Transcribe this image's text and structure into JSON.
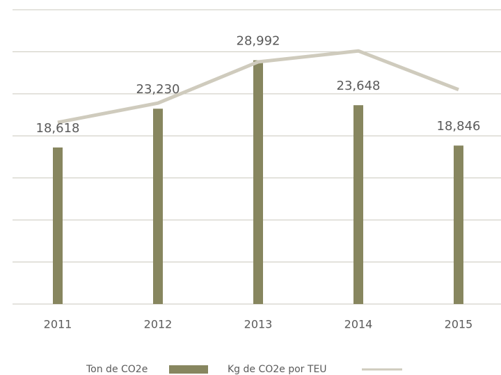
{
  "chart_data": {
    "type": "bar_line",
    "categories": [
      "2011",
      "2012",
      "2013",
      "2014",
      "2015"
    ],
    "series": [
      {
        "name": "Ton de CO2e",
        "type": "bar",
        "color": "#87865f",
        "values": [
          18618,
          23230,
          28992,
          23648,
          18846
        ],
        "value_labels": [
          "18,618",
          "23,230",
          "28,992",
          "23,648",
          "18,846"
        ]
      },
      {
        "name": "Kg de CO2e por TEU",
        "type": "line",
        "color": "#cfcbbd",
        "values": [
          21600,
          23900,
          28800,
          30100,
          25500
        ]
      }
    ],
    "ylim": [
      0,
      35000
    ],
    "yticks": [
      0,
      5000,
      10000,
      15000,
      20000,
      25000,
      30000,
      35000
    ],
    "grid": true,
    "legend": "bottom"
  }
}
